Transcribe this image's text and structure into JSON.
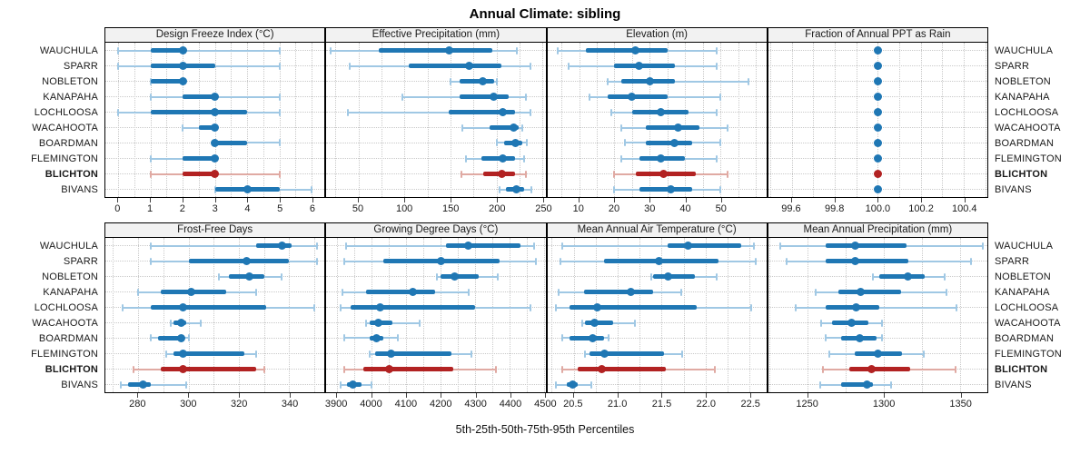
{
  "chart_data": {
    "type": "dot-interval",
    "title": "Annual Climate: sibling",
    "caption": "5th-25th-50th-75th-95th Percentiles",
    "percentile_labels": [
      "5th",
      "25th",
      "50th",
      "75th",
      "95th"
    ],
    "stations": [
      "WAUCHULA",
      "SPARR",
      "NOBLETON",
      "KANAPAHA",
      "LOCHLOOSA",
      "WACAHOOTA",
      "BOARDMAN",
      "FLEMINGTON",
      "BLICHTON",
      "BIVANS"
    ],
    "highlight_station": "BLICHTON",
    "colors": {
      "normal": "#1f77b4",
      "normal_light": "#a0c8e4",
      "highlight": "#b22222",
      "highlight_light": "#e0aaa3",
      "grid": "#c9c9c9",
      "panel_header_bg": "#f2f2f2",
      "panel_border": "#000000"
    },
    "layout": {
      "rows": 2,
      "cols": 4,
      "grid": "dotted-major-and-minor",
      "station_labels": "both-sides",
      "legend": "none"
    },
    "panels": [
      {
        "title": "Design Freeze Index (°C)",
        "xlim": [
          -0.4,
          6.4
        ],
        "ticks": [
          0,
          1,
          2,
          3,
          4,
          5,
          6
        ],
        "tick_labels": [
          "0",
          "1",
          "2",
          "3",
          "4",
          "5",
          "6"
        ],
        "values": {
          "WAUCHULA": [
            0,
            1,
            2,
            2,
            5
          ],
          "SPARR": [
            0,
            1,
            2,
            3,
            5
          ],
          "NOBLETON": [
            1,
            1,
            2,
            2,
            2
          ],
          "KANAPAHA": [
            1,
            2,
            3,
            3,
            5
          ],
          "LOCHLOOSA": [
            0,
            1,
            3,
            4,
            5
          ],
          "WACAHOOTA": [
            2,
            2.5,
            3,
            3,
            3
          ],
          "BOARDMAN": [
            3,
            3,
            3,
            4,
            5
          ],
          "FLEMINGTON": [
            1,
            2,
            3,
            3,
            3
          ],
          "BLICHTON": [
            1,
            2,
            3,
            3,
            5
          ],
          "BIVANS": [
            3,
            3,
            4,
            5,
            6
          ]
        }
      },
      {
        "title": "Effective Precipitation (mm)",
        "xlim": [
          15,
          253
        ],
        "ticks": [
          50,
          100,
          150,
          200,
          250
        ],
        "tick_labels": [
          "50",
          "100",
          "150",
          "200",
          "250"
        ],
        "values": {
          "WAUCHULA": [
            20,
            72,
            148,
            195,
            222
          ],
          "SPARR": [
            40,
            105,
            170,
            205,
            237
          ],
          "NOBLETON": [
            150,
            160,
            185,
            197,
            200
          ],
          "KANAPAHA": [
            98,
            160,
            197,
            213,
            232
          ],
          "LOCHLOOSA": [
            38,
            148,
            207,
            220,
            237
          ],
          "WACAHOOTA": [
            163,
            192,
            218,
            224,
            228
          ],
          "BOARDMAN": [
            200,
            208,
            220,
            228,
            233
          ],
          "FLEMINGTON": [
            167,
            183,
            207,
            220,
            230
          ],
          "BLICHTON": [
            162,
            185,
            206,
            220,
            232
          ],
          "BIVANS": [
            203,
            210,
            221,
            230,
            238
          ]
        }
      },
      {
        "title": "Elevation (m)",
        "xlim": [
          1,
          63
        ],
        "ticks": [
          10,
          20,
          30,
          40,
          50
        ],
        "tick_labels": [
          "10",
          "20",
          "30",
          "40",
          "50"
        ],
        "values": {
          "WAUCHULA": [
            4,
            12,
            26,
            35,
            49
          ],
          "SPARR": [
            7,
            20,
            27,
            37,
            49
          ],
          "NOBLETON": [
            18,
            22,
            30,
            37,
            58
          ],
          "KANAPAHA": [
            13,
            18,
            25,
            35,
            50
          ],
          "LOCHLOOSA": [
            19,
            25,
            33,
            41,
            49
          ],
          "WACAHOOTA": [
            22,
            29,
            38,
            44,
            52
          ],
          "BOARDMAN": [
            23,
            29,
            37,
            42,
            50
          ],
          "FLEMINGTON": [
            22,
            27,
            33,
            40,
            49
          ],
          "BLICHTON": [
            20,
            26,
            34,
            43,
            52
          ],
          "BIVANS": [
            20,
            27,
            36,
            42,
            50
          ]
        }
      },
      {
        "title": "Fraction of Annual PPT as Rain",
        "xlim": [
          99.49,
          100.51
        ],
        "ticks": [
          99.6,
          99.8,
          100.0,
          100.2,
          100.4
        ],
        "tick_labels": [
          "99.6",
          "99.8",
          "100.0",
          "100.2",
          "100.4"
        ],
        "values": {
          "WAUCHULA": [
            100,
            100,
            100,
            100,
            100
          ],
          "SPARR": [
            100,
            100,
            100,
            100,
            100
          ],
          "NOBLETON": [
            100,
            100,
            100,
            100,
            100
          ],
          "KANAPAHA": [
            100,
            100,
            100,
            100,
            100
          ],
          "LOCHLOOSA": [
            100,
            100,
            100,
            100,
            100
          ],
          "WACAHOOTA": [
            100,
            100,
            100,
            100,
            100
          ],
          "BOARDMAN": [
            100,
            100,
            100,
            100,
            100
          ],
          "FLEMINGTON": [
            100,
            100,
            100,
            100,
            100
          ],
          "BLICHTON": [
            100,
            100,
            100,
            100,
            100
          ],
          "BIVANS": [
            100,
            100,
            100,
            100,
            100
          ]
        }
      },
      {
        "title": "Frost-Free Days",
        "xlim": [
          267,
          354
        ],
        "ticks": [
          280,
          300,
          320,
          340
        ],
        "tick_labels": [
          "280",
          "300",
          "320",
          "340"
        ],
        "values": {
          "WAUCHULA": [
            285,
            327,
            337,
            341,
            351
          ],
          "SPARR": [
            285,
            300,
            323,
            340,
            351
          ],
          "NOBLETON": [
            312,
            316,
            324,
            330,
            337
          ],
          "KANAPAHA": [
            280,
            289,
            301,
            315,
            327
          ],
          "LOCHLOOSA": [
            274,
            285,
            298,
            331,
            350
          ],
          "WACAHOOTA": [
            293,
            294,
            297,
            299,
            305
          ],
          "BOARDMAN": [
            285,
            288,
            297,
            298,
            300
          ],
          "FLEMINGTON": [
            291,
            294,
            298,
            322,
            327
          ],
          "BLICHTON": [
            278,
            289,
            298,
            327,
            330
          ],
          "BIVANS": [
            273,
            276,
            282,
            285,
            299
          ]
        }
      },
      {
        "title": "Growing Degree Days (°C)",
        "xlim": [
          3869,
          4503
        ],
        "ticks": [
          3900,
          4000,
          4100,
          4200,
          4300,
          4400,
          4500
        ],
        "tick_labels": [
          "3900",
          "4000",
          "4100",
          "4200",
          "4300",
          "4400",
          "4500"
        ],
        "values": {
          "WAUCHULA": [
            3925,
            4215,
            4280,
            4430,
            4470
          ],
          "SPARR": [
            3920,
            4035,
            4200,
            4370,
            4475
          ],
          "NOBLETON": [
            4190,
            4200,
            4240,
            4310,
            4365
          ],
          "KANAPAHA": [
            3915,
            3985,
            4120,
            4185,
            4280
          ],
          "LOCHLOOSA": [
            3910,
            3940,
            4025,
            4300,
            4460
          ],
          "WACAHOOTA": [
            3985,
            3995,
            4020,
            4060,
            4140
          ],
          "BOARDMAN": [
            3920,
            3995,
            4015,
            4035,
            4075
          ],
          "FLEMINGTON": [
            3995,
            4010,
            4055,
            4230,
            4290
          ],
          "BLICHTON": [
            3920,
            3975,
            4050,
            4235,
            4360
          ],
          "BIVANS": [
            3910,
            3930,
            3945,
            3970,
            4000
          ]
        }
      },
      {
        "title": "Mean Annual Air Temperature (°C)",
        "xlim": [
          20.2,
          22.69
        ],
        "ticks": [
          20.5,
          21.0,
          21.5,
          22.0,
          22.5
        ],
        "tick_labels": [
          "20.5",
          "21.0",
          "21.5",
          "22.0",
          "22.5"
        ],
        "values": {
          "WAUCHULA": [
            20.37,
            21.57,
            21.8,
            22.4,
            22.55
          ],
          "SPARR": [
            20.35,
            20.85,
            21.47,
            22.15,
            22.57
          ],
          "NOBLETON": [
            21.38,
            21.4,
            21.57,
            21.88,
            22.13
          ],
          "KANAPAHA": [
            20.33,
            20.62,
            21.15,
            21.4,
            21.72
          ],
          "LOCHLOOSA": [
            20.3,
            20.45,
            20.77,
            21.9,
            22.52
          ],
          "WACAHOOTA": [
            20.6,
            20.63,
            20.74,
            20.95,
            21.2
          ],
          "BOARDMAN": [
            20.37,
            20.45,
            20.72,
            20.85,
            20.9
          ],
          "FLEMINGTON": [
            20.63,
            20.68,
            20.85,
            21.53,
            21.73
          ],
          "BLICHTON": [
            20.37,
            20.55,
            20.82,
            21.55,
            22.1
          ],
          "BIVANS": [
            20.3,
            20.42,
            20.49,
            20.55,
            20.7
          ]
        }
      },
      {
        "title": "Mean Annual Precipitation (mm)",
        "xlim": [
          1224,
          1368
        ],
        "ticks": [
          1250,
          1300,
          1350
        ],
        "tick_labels": [
          "1250",
          "1300",
          "1350"
        ],
        "values": {
          "WAUCHULA": [
            1232,
            1262,
            1281,
            1315,
            1365
          ],
          "SPARR": [
            1236,
            1262,
            1281,
            1316,
            1357
          ],
          "NOBLETON": [
            1293,
            1297,
            1316,
            1327,
            1340
          ],
          "KANAPAHA": [
            1255,
            1270,
            1285,
            1311,
            1341
          ],
          "LOCHLOOSA": [
            1242,
            1262,
            1282,
            1297,
            1348
          ],
          "WACAHOOTA": [
            1259,
            1266,
            1279,
            1290,
            1299
          ],
          "BOARDMAN": [
            1262,
            1272,
            1284,
            1295,
            1299
          ],
          "FLEMINGTON": [
            1264,
            1281,
            1296,
            1312,
            1326
          ],
          "BLICHTON": [
            1260,
            1277,
            1292,
            1317,
            1347
          ],
          "BIVANS": [
            1258,
            1272,
            1289,
            1293,
            1305
          ]
        }
      }
    ]
  }
}
